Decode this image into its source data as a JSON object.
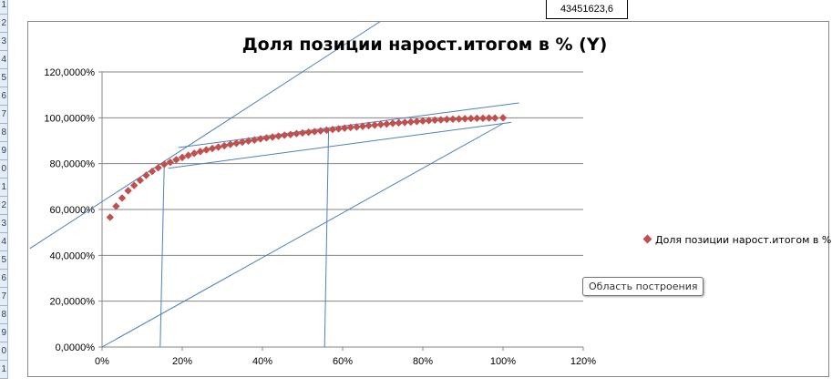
{
  "spreadsheet": {
    "row_numbers": [
      "1",
      "2",
      "3",
      "4",
      "5",
      "6",
      "7",
      "8",
      "9",
      "0",
      "1",
      "2",
      "3",
      "4",
      "5",
      "6",
      "7",
      "8",
      "9",
      "0",
      "1"
    ],
    "cell_value": "43451623,6"
  },
  "tooltip": "Область построения",
  "colors": {
    "marker": "#c0504d",
    "trend_lines": "#4f81bd",
    "gridline": "#868686"
  },
  "chart_data": {
    "type": "scatter",
    "title": "Доля позиции нарост.итогом в % (Y)",
    "xlabel": "",
    "ylabel": "",
    "xlim": [
      0,
      1.2
    ],
    "ylim": [
      0,
      1.2
    ],
    "x_ticks": [
      "0%",
      "20%",
      "40%",
      "60%",
      "80%",
      "100%",
      "120%"
    ],
    "y_ticks": [
      "0,0000%",
      "20,0000%",
      "40,0000%",
      "60,0000%",
      "80,0000%",
      "100,0000%",
      "120,0000%"
    ],
    "grid": "horizontal",
    "legend": "right",
    "series": [
      {
        "name": "Доля позиции нарост.итогом в % (Y)",
        "marker": "diamond",
        "x": [
          0.02,
          0.035,
          0.05,
          0.065,
          0.08,
          0.095,
          0.11,
          0.125,
          0.14,
          0.155,
          0.17,
          0.185,
          0.2,
          0.215,
          0.23,
          0.245,
          0.26,
          0.275,
          0.29,
          0.305,
          0.32,
          0.335,
          0.35,
          0.365,
          0.38,
          0.395,
          0.41,
          0.425,
          0.44,
          0.455,
          0.47,
          0.485,
          0.5,
          0.515,
          0.53,
          0.545,
          0.56,
          0.575,
          0.59,
          0.605,
          0.62,
          0.635,
          0.65,
          0.665,
          0.68,
          0.695,
          0.71,
          0.725,
          0.74,
          0.755,
          0.77,
          0.785,
          0.8,
          0.815,
          0.83,
          0.845,
          0.86,
          0.875,
          0.89,
          0.905,
          0.92,
          0.935,
          0.95,
          0.965,
          0.98,
          1.0
        ],
        "y": [
          0.566,
          0.614,
          0.65,
          0.682,
          0.705,
          0.727,
          0.749,
          0.766,
          0.782,
          0.797,
          0.806,
          0.817,
          0.827,
          0.836,
          0.845,
          0.853,
          0.86,
          0.866,
          0.872,
          0.878,
          0.884,
          0.889,
          0.894,
          0.899,
          0.903,
          0.908,
          0.912,
          0.916,
          0.92,
          0.924,
          0.927,
          0.931,
          0.934,
          0.937,
          0.94,
          0.943,
          0.946,
          0.949,
          0.952,
          0.955,
          0.958,
          0.96,
          0.963,
          0.966,
          0.968,
          0.971,
          0.973,
          0.976,
          0.978,
          0.98,
          0.982,
          0.984,
          0.986,
          0.988,
          0.99,
          0.991,
          0.993,
          0.994,
          0.995,
          0.996,
          0.997,
          0.998,
          0.998,
          0.999,
          0.999,
          1.0
        ]
      }
    ],
    "drawn_lines": [
      {
        "x1": -0.18,
        "y1": 0.43,
        "x2": 0.72,
        "y2": 1.45
      },
      {
        "x1": 0.19,
        "y1": 0.87,
        "x2": 1.04,
        "y2": 1.065
      },
      {
        "x1": 0.165,
        "y1": 0.78,
        "x2": 1.02,
        "y2": 0.98
      },
      {
        "x1": 0.0,
        "y1": 0.0,
        "x2": 1.0,
        "y2": 0.975
      },
      {
        "x1": 0.145,
        "y1": 0.0,
        "x2": 0.155,
        "y2": 0.79
      },
      {
        "x1": 0.555,
        "y1": 0.0,
        "x2": 0.565,
        "y2": 0.95
      }
    ]
  }
}
